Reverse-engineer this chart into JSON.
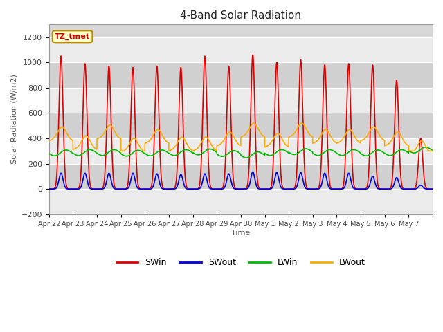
{
  "title": "4-Band Solar Radiation",
  "xlabel": "Time",
  "ylabel": "Solar Radiation (W/m2)",
  "ylim": [
    -200,
    1300
  ],
  "yticks": [
    -200,
    0,
    200,
    400,
    600,
    800,
    1000,
    1200
  ],
  "num_days": 16,
  "date_labels": [
    "Apr 22",
    "Apr 23",
    "Apr 24",
    "Apr 25",
    "Apr 26",
    "Apr 27",
    "Apr 28",
    "Apr 29",
    "Apr 30",
    "May 1",
    "May 2",
    "May 3",
    "May 4",
    "May 5",
    "May 6",
    "May 7"
  ],
  "swin_peaks": [
    1050,
    990,
    970,
    960,
    970,
    960,
    1050,
    970,
    1060,
    1000,
    1020,
    980,
    990,
    980,
    860,
    400
  ],
  "swout_peaks": [
    125,
    125,
    125,
    125,
    120,
    115,
    120,
    120,
    135,
    130,
    130,
    125,
    125,
    100,
    90,
    30
  ],
  "lwin_vals": [
    295,
    265,
    300,
    265,
    290,
    270,
    295,
    280,
    270,
    260,
    305,
    275,
    290,
    275,
    285,
    280,
    325
  ],
  "lwout_base_vals": [
    460,
    390,
    475,
    370,
    440,
    380,
    380,
    420,
    490,
    410,
    490,
    440,
    440,
    460,
    420,
    350
  ],
  "swin_color": "#dd0000",
  "swout_color": "#0000dd",
  "lwin_color": "#00bb00",
  "lwout_color": "#ffaa00",
  "line_width": 1.2,
  "bg_plot": "#d8d8d8",
  "bg_fig": "#ffffff",
  "grid_color": "#ffffff",
  "legend_labels": [
    "SWin",
    "SWout",
    "LWin",
    "LWout"
  ],
  "tz_label": "TZ_tmet",
  "tz_label_color": "#cc0000",
  "tz_box_facecolor": "#ffffcc",
  "tz_box_edgecolor": "#bb8800"
}
